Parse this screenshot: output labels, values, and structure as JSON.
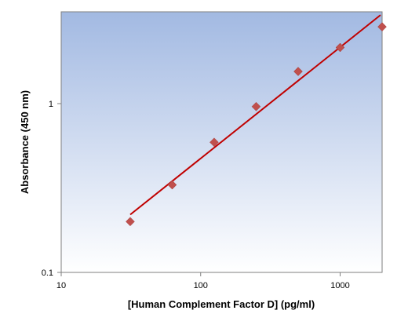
{
  "chart_data": {
    "type": "scatter",
    "title": "",
    "xlabel": "[Human Complement Factor D] (pg/ml)",
    "ylabel": "Absorbance (450 nm)",
    "x_scale": "log",
    "y_scale": "log",
    "xlim": [
      10,
      2000
    ],
    "ylim": [
      0.1,
      3.5
    ],
    "x_ticks": [
      10,
      100,
      1000
    ],
    "x_tick_labels": [
      "10",
      "100",
      "1000"
    ],
    "y_ticks": [
      0.1,
      1
    ],
    "y_tick_labels": [
      "0.1",
      "1"
    ],
    "grid": false,
    "legend": "none",
    "series": [
      {
        "kind": "points",
        "marker": "diamond",
        "color": "#c0504d",
        "x": [
          31.25,
          62.5,
          125,
          250,
          500,
          1000,
          2000
        ],
        "y": [
          0.2,
          0.33,
          0.59,
          0.96,
          1.55,
          2.15,
          2.85
        ]
      },
      {
        "kind": "fit-line",
        "color": "#c00000",
        "x": [
          31.25,
          1950
        ],
        "y": [
          0.22,
          3.35
        ]
      }
    ],
    "background_gradient": [
      "#a2b9e2",
      "#ffffff"
    ]
  }
}
